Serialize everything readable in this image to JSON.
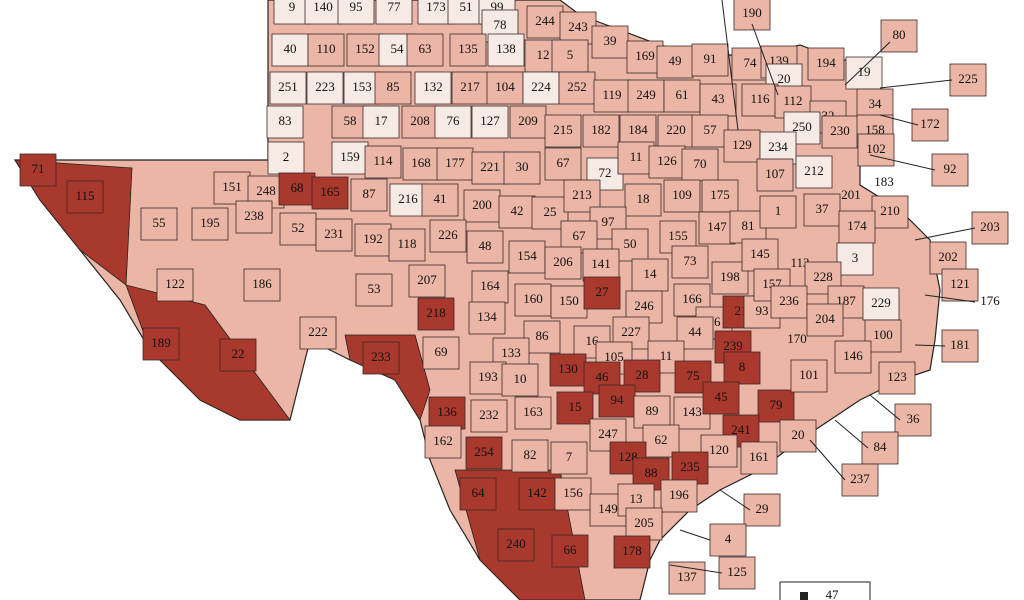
{
  "shades": {
    "dark": "#a8392c",
    "medium": "#ebb6a6",
    "light": "#f6ebe4"
  },
  "counties": [
    {
      "label": "9",
      "shade": "light"
    },
    {
      "label": "140",
      "shade": "light"
    },
    {
      "label": "95",
      "shade": "light"
    },
    {
      "label": "77",
      "shade": "light"
    },
    {
      "label": "173",
      "shade": "light"
    },
    {
      "label": "51",
      "shade": "light"
    },
    {
      "label": "99",
      "shade": "light"
    },
    {
      "label": "78",
      "shade": "light"
    },
    {
      "label": "244",
      "shade": "medium"
    },
    {
      "label": "243",
      "shade": "medium"
    },
    {
      "label": "40",
      "shade": "light"
    },
    {
      "label": "110",
      "shade": "medium"
    },
    {
      "label": "152",
      "shade": "medium"
    },
    {
      "label": "54",
      "shade": "light"
    },
    {
      "label": "63",
      "shade": "medium"
    },
    {
      "label": "135",
      "shade": "medium"
    },
    {
      "label": "138",
      "shade": "light"
    },
    {
      "label": "12",
      "shade": "medium"
    },
    {
      "label": "5",
      "shade": "medium"
    },
    {
      "label": "39",
      "shade": "medium"
    },
    {
      "label": "169",
      "shade": "medium"
    },
    {
      "label": "49",
      "shade": "medium"
    },
    {
      "label": "91",
      "shade": "medium"
    },
    {
      "label": "251",
      "shade": "light"
    },
    {
      "label": "223",
      "shade": "light"
    },
    {
      "label": "153",
      "shade": "light"
    },
    {
      "label": "85",
      "shade": "medium"
    },
    {
      "label": "132",
      "shade": "light"
    },
    {
      "label": "217",
      "shade": "medium"
    },
    {
      "label": "104",
      "shade": "medium"
    },
    {
      "label": "224",
      "shade": "light"
    },
    {
      "label": "252",
      "shade": "medium"
    },
    {
      "label": "119",
      "shade": "medium"
    },
    {
      "label": "249",
      "shade": "medium"
    },
    {
      "label": "61",
      "shade": "medium"
    },
    {
      "label": "43",
      "shade": "medium"
    },
    {
      "label": "83",
      "shade": "light"
    },
    {
      "label": "58",
      "shade": "medium"
    },
    {
      "label": "17",
      "shade": "light"
    },
    {
      "label": "208",
      "shade": "medium"
    },
    {
      "label": "76",
      "shade": "light"
    },
    {
      "label": "127",
      "shade": "light"
    },
    {
      "label": "209",
      "shade": "medium"
    },
    {
      "label": "215",
      "shade": "medium"
    },
    {
      "label": "182",
      "shade": "medium"
    },
    {
      "label": "184",
      "shade": "medium"
    },
    {
      "label": "220",
      "shade": "medium"
    },
    {
      "label": "57",
      "shade": "medium"
    },
    {
      "label": "2",
      "shade": "light"
    },
    {
      "label": "159",
      "shade": "light"
    },
    {
      "label": "114",
      "shade": "medium"
    },
    {
      "label": "168",
      "shade": "medium"
    },
    {
      "label": "177",
      "shade": "medium"
    },
    {
      "label": "221",
      "shade": "medium"
    },
    {
      "label": "30",
      "shade": "medium"
    },
    {
      "label": "67",
      "shade": "medium"
    },
    {
      "label": "72",
      "shade": "light"
    },
    {
      "label": "11",
      "shade": "medium"
    },
    {
      "label": "126",
      "shade": "medium"
    },
    {
      "label": "70",
      "shade": "medium"
    },
    {
      "label": "71",
      "shade": "dark"
    },
    {
      "label": "115",
      "shade": "dark"
    },
    {
      "label": "151",
      "shade": "medium"
    },
    {
      "label": "248",
      "shade": "medium"
    },
    {
      "label": "68",
      "shade": "dark"
    },
    {
      "label": "165",
      "shade": "dark"
    },
    {
      "label": "87",
      "shade": "medium"
    },
    {
      "label": "216",
      "shade": "light"
    },
    {
      "label": "41",
      "shade": "medium"
    },
    {
      "label": "200",
      "shade": "medium"
    },
    {
      "label": "42",
      "shade": "medium"
    },
    {
      "label": "25",
      "shade": "medium"
    },
    {
      "label": "213",
      "shade": "medium"
    },
    {
      "label": "18",
      "shade": "medium"
    },
    {
      "label": "109",
      "shade": "medium"
    },
    {
      "label": "175",
      "shade": "medium"
    },
    {
      "label": "55",
      "shade": "medium"
    },
    {
      "label": "195",
      "shade": "medium"
    },
    {
      "label": "238",
      "shade": "medium"
    },
    {
      "label": "52",
      "shade": "medium"
    },
    {
      "label": "231",
      "shade": "medium"
    },
    {
      "label": "192",
      "shade": "medium"
    },
    {
      "label": "118",
      "shade": "medium"
    },
    {
      "label": "226",
      "shade": "medium"
    },
    {
      "label": "48",
      "shade": "medium"
    },
    {
      "label": "97",
      "shade": "medium"
    },
    {
      "label": "67",
      "shade": "medium"
    },
    {
      "label": "50",
      "shade": "medium"
    },
    {
      "label": "155",
      "shade": "medium"
    },
    {
      "label": "147",
      "shade": "medium"
    },
    {
      "label": "81",
      "shade": "medium"
    },
    {
      "label": "1",
      "shade": "medium"
    },
    {
      "label": "122",
      "shade": "medium"
    },
    {
      "label": "186",
      "shade": "medium"
    },
    {
      "label": "53",
      "shade": "medium"
    },
    {
      "label": "207",
      "shade": "medium"
    },
    {
      "label": "164",
      "shade": "medium"
    },
    {
      "label": "154",
      "shade": "medium"
    },
    {
      "label": "206",
      "shade": "medium"
    },
    {
      "label": "141",
      "shade": "medium"
    },
    {
      "label": "14",
      "shade": "medium"
    },
    {
      "label": "73",
      "shade": "medium"
    },
    {
      "label": "198",
      "shade": "medium"
    },
    {
      "label": "145",
      "shade": "medium"
    },
    {
      "label": "218",
      "shade": "dark"
    },
    {
      "label": "134",
      "shade": "medium"
    },
    {
      "label": "160",
      "shade": "medium"
    },
    {
      "label": "150",
      "shade": "medium"
    },
    {
      "label": "27",
      "shade": "dark"
    },
    {
      "label": "246",
      "shade": "medium"
    },
    {
      "label": "166",
      "shade": "medium"
    },
    {
      "label": "26",
      "shade": "medium"
    },
    {
      "label": "21",
      "shade": "dark"
    },
    {
      "label": "93",
      "shade": "medium"
    },
    {
      "label": "157",
      "shade": "medium"
    },
    {
      "label": "189",
      "shade": "dark"
    },
    {
      "label": "22",
      "shade": "dark"
    },
    {
      "label": "222",
      "shade": "medium"
    },
    {
      "label": "233",
      "shade": "dark"
    },
    {
      "label": "69",
      "shade": "medium"
    },
    {
      "label": "86",
      "shade": "medium"
    },
    {
      "label": "16",
      "shade": "medium"
    },
    {
      "label": "227",
      "shade": "medium"
    },
    {
      "label": "44",
      "shade": "medium"
    },
    {
      "label": "239",
      "shade": "dark"
    },
    {
      "label": "133",
      "shade": "medium"
    },
    {
      "label": "105",
      "shade": "medium"
    },
    {
      "label": "11",
      "shade": "medium"
    },
    {
      "label": "193",
      "shade": "medium"
    },
    {
      "label": "10",
      "shade": "medium"
    },
    {
      "label": "130",
      "shade": "dark"
    },
    {
      "label": "46",
      "shade": "dark"
    },
    {
      "label": "28",
      "shade": "dark"
    },
    {
      "label": "75",
      "shade": "dark"
    },
    {
      "label": "8",
      "shade": "dark"
    },
    {
      "label": "136",
      "shade": "dark"
    },
    {
      "label": "232",
      "shade": "medium"
    },
    {
      "label": "163",
      "shade": "medium"
    },
    {
      "label": "15",
      "shade": "dark"
    },
    {
      "label": "94",
      "shade": "dark"
    },
    {
      "label": "89",
      "shade": "medium"
    },
    {
      "label": "143",
      "shade": "medium"
    },
    {
      "label": "45",
      "shade": "dark"
    },
    {
      "label": "79",
      "shade": "dark"
    },
    {
      "label": "241",
      "shade": "dark"
    },
    {
      "label": "162",
      "shade": "medium"
    },
    {
      "label": "254",
      "shade": "dark"
    },
    {
      "label": "82",
      "shade": "medium"
    },
    {
      "label": "7",
      "shade": "medium"
    },
    {
      "label": "247",
      "shade": "medium"
    },
    {
      "label": "62",
      "shade": "medium"
    },
    {
      "label": "20",
      "shade": "medium"
    },
    {
      "label": "120",
      "shade": "medium"
    },
    {
      "label": "128",
      "shade": "dark"
    },
    {
      "label": "88",
      "shade": "dark"
    },
    {
      "label": "235",
      "shade": "dark"
    },
    {
      "label": "161",
      "shade": "medium"
    },
    {
      "label": "64",
      "shade": "dark"
    },
    {
      "label": "142",
      "shade": "dark"
    },
    {
      "label": "156",
      "shade": "medium"
    },
    {
      "label": "149",
      "shade": "medium"
    },
    {
      "label": "13",
      "shade": "medium"
    },
    {
      "label": "196",
      "shade": "medium"
    },
    {
      "label": "29",
      "shade": "medium"
    },
    {
      "label": "240",
      "shade": "dark"
    },
    {
      "label": "66",
      "shade": "dark"
    },
    {
      "label": "205",
      "shade": "medium"
    },
    {
      "label": "178",
      "shade": "dark"
    },
    {
      "label": "4",
      "shade": "medium"
    },
    {
      "label": "137",
      "shade": "medium"
    },
    {
      "label": "125",
      "shade": "medium"
    },
    {
      "label": "190",
      "shade": "medium"
    },
    {
      "label": "80",
      "shade": "medium"
    },
    {
      "label": "225",
      "shade": "medium"
    },
    {
      "label": "74",
      "shade": "medium"
    },
    {
      "label": "139",
      "shade": "medium"
    },
    {
      "label": "20",
      "shade": "light"
    },
    {
      "label": "194",
      "shade": "medium"
    },
    {
      "label": "19",
      "shade": "light"
    },
    {
      "label": "34",
      "shade": "medium"
    },
    {
      "label": "172",
      "shade": "medium"
    },
    {
      "label": "116",
      "shade": "medium"
    },
    {
      "label": "112",
      "shade": "medium"
    },
    {
      "label": "32",
      "shade": "medium"
    },
    {
      "label": "230",
      "shade": "medium"
    },
    {
      "label": "158",
      "shade": "medium"
    },
    {
      "label": "250",
      "shade": "light"
    },
    {
      "label": "129",
      "shade": "medium"
    },
    {
      "label": "234",
      "shade": "light"
    },
    {
      "label": "102",
      "shade": "medium"
    },
    {
      "label": "92",
      "shade": "medium"
    },
    {
      "label": "107",
      "shade": "medium"
    },
    {
      "label": "212",
      "shade": "light"
    },
    {
      "label": "183",
      "shade": "medium"
    },
    {
      "label": "201",
      "shade": "light"
    },
    {
      "label": "37",
      "shade": "medium"
    },
    {
      "label": "210",
      "shade": "medium"
    },
    {
      "label": "174",
      "shade": "medium"
    },
    {
      "label": "203",
      "shade": "medium"
    },
    {
      "label": "113",
      "shade": "light"
    },
    {
      "label": "3",
      "shade": "light"
    },
    {
      "label": "202",
      "shade": "medium"
    },
    {
      "label": "228",
      "shade": "medium"
    },
    {
      "label": "121",
      "shade": "medium"
    },
    {
      "label": "176",
      "shade": "medium"
    },
    {
      "label": "236",
      "shade": "medium"
    },
    {
      "label": "187",
      "shade": "medium"
    },
    {
      "label": "229",
      "shade": "light"
    },
    {
      "label": "204",
      "shade": "medium"
    },
    {
      "label": "170",
      "shade": "medium"
    },
    {
      "label": "100",
      "shade": "medium"
    },
    {
      "label": "181",
      "shade": "medium"
    },
    {
      "label": "146",
      "shade": "medium"
    },
    {
      "label": "101",
      "shade": "medium"
    },
    {
      "label": "123",
      "shade": "medium"
    },
    {
      "label": "36",
      "shade": "medium"
    },
    {
      "label": "84",
      "shade": "medium"
    },
    {
      "label": "237",
      "shade": "medium"
    }
  ],
  "legend": {
    "label": "47"
  }
}
